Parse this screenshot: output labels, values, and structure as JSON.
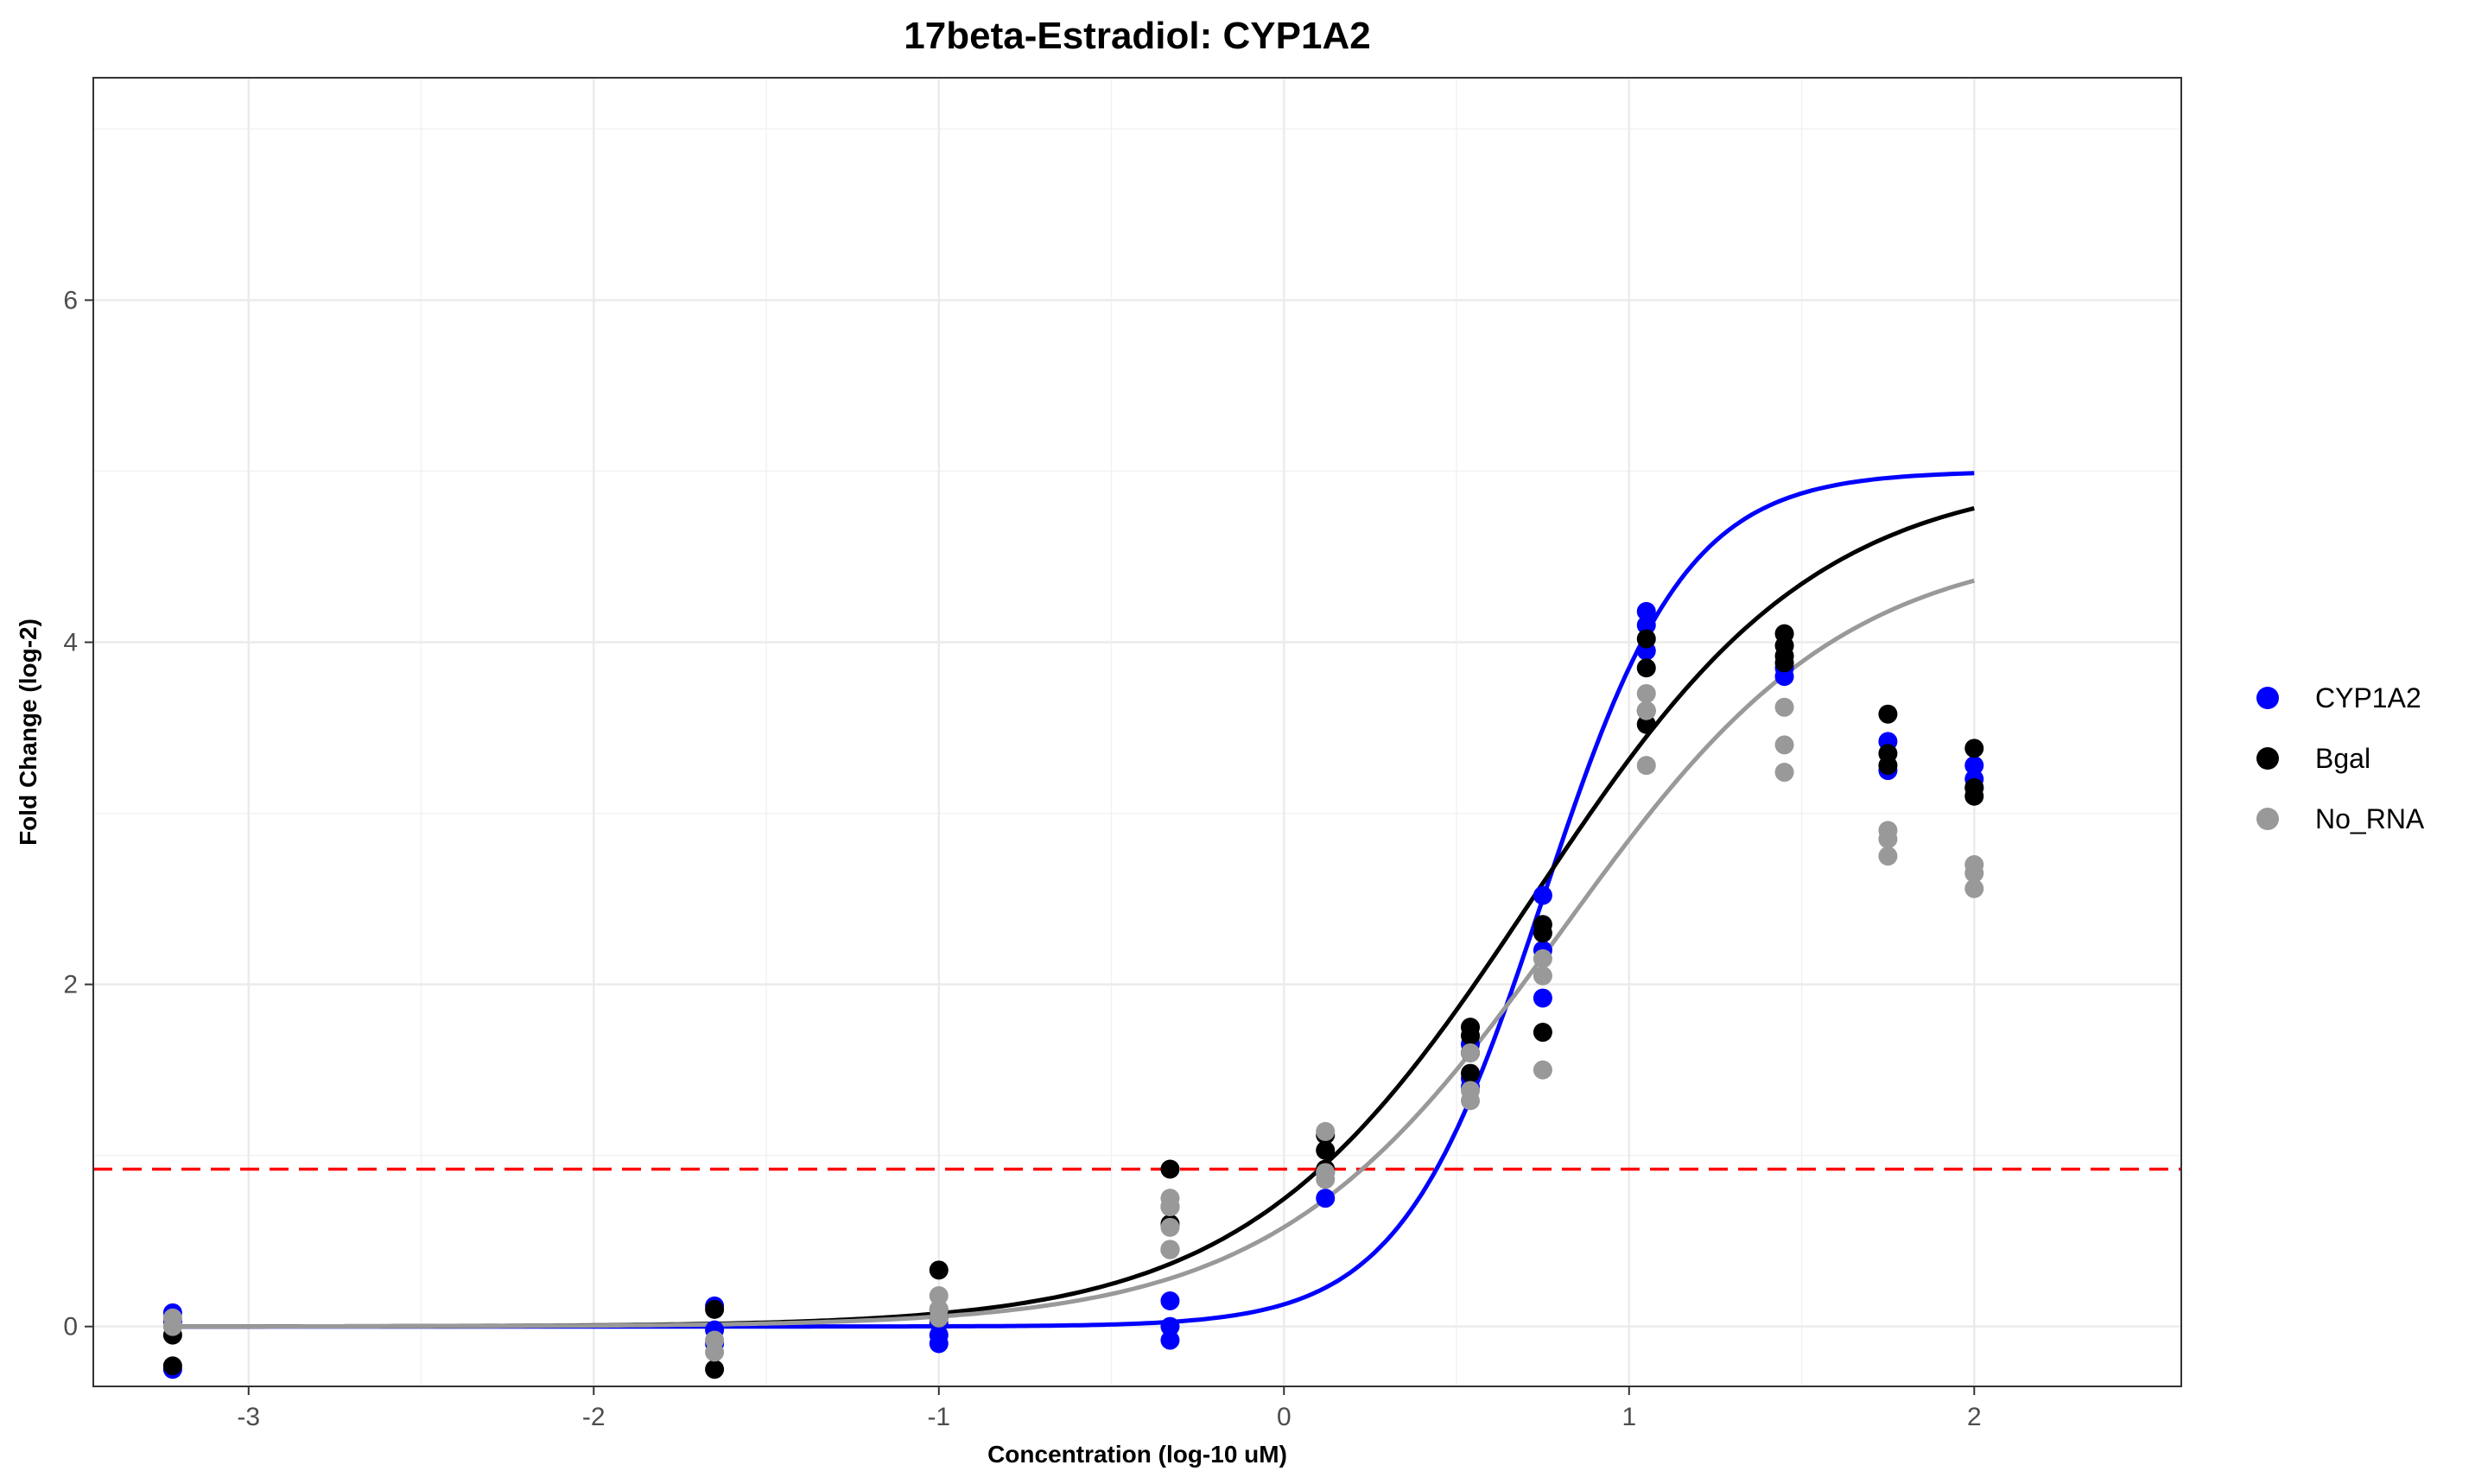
{
  "chart_data": {
    "type": "scatter",
    "title": "17beta-Estradiol: CYP1A2",
    "xlabel": "Concentration (log-10 uM)",
    "ylabel": "Fold Change (log-2)",
    "xlim": [
      -3.45,
      2.6
    ],
    "ylim": [
      -0.35,
      7.3
    ],
    "x_ticks": [
      -3,
      -2,
      -1,
      0,
      1,
      2
    ],
    "y_ticks": [
      0,
      2,
      4,
      6
    ],
    "grid": true,
    "legend_position": "right",
    "threshold_line": {
      "y": 0.92,
      "color": "#ff0000",
      "style": "dashed"
    },
    "series": [
      {
        "name": "CYP1A2",
        "color": "#0000ff",
        "points": [
          [
            -3.22,
            0.08
          ],
          [
            -3.22,
            0.03
          ],
          [
            -3.22,
            -0.25
          ],
          [
            -1.65,
            0.12
          ],
          [
            -1.65,
            -0.02
          ],
          [
            -1.65,
            -0.1
          ],
          [
            -1.0,
            -0.05
          ],
          [
            -1.0,
            -0.1
          ],
          [
            -1.0,
            0.02
          ],
          [
            -0.33,
            0.15
          ],
          [
            -0.33,
            0.0
          ],
          [
            -0.33,
            -0.08
          ],
          [
            0.12,
            0.9
          ],
          [
            0.12,
            0.75
          ],
          [
            0.54,
            1.65
          ],
          [
            0.54,
            1.45
          ],
          [
            0.54,
            1.4
          ],
          [
            0.75,
            2.52
          ],
          [
            0.75,
            2.2
          ],
          [
            0.75,
            1.92
          ],
          [
            1.05,
            4.18
          ],
          [
            1.05,
            4.1
          ],
          [
            1.05,
            3.95
          ],
          [
            1.45,
            3.85
          ],
          [
            1.45,
            3.8
          ],
          [
            1.75,
            3.42
          ],
          [
            1.75,
            3.25
          ],
          [
            2.0,
            3.28
          ],
          [
            2.0,
            3.2
          ],
          [
            2.0,
            3.15
          ]
        ],
        "fit": {
          "bottom": 0.0,
          "top": 5.0,
          "ec50_log": 0.75,
          "hill": 2.1
        }
      },
      {
        "name": "Bgal",
        "color": "#000000",
        "points": [
          [
            -3.22,
            -0.05
          ],
          [
            -3.22,
            -0.23
          ],
          [
            -1.65,
            0.1
          ],
          [
            -1.65,
            -0.25
          ],
          [
            -1.0,
            0.33
          ],
          [
            -1.0,
            0.1
          ],
          [
            -1.0,
            0.05
          ],
          [
            -0.33,
            0.92
          ],
          [
            -0.33,
            0.7
          ],
          [
            -0.33,
            0.6
          ],
          [
            -0.33,
            0.45
          ],
          [
            0.12,
            1.12
          ],
          [
            0.12,
            1.03
          ],
          [
            0.12,
            0.92
          ],
          [
            0.54,
            1.75
          ],
          [
            0.54,
            1.7
          ],
          [
            0.54,
            1.6
          ],
          [
            0.54,
            1.48
          ],
          [
            0.75,
            2.35
          ],
          [
            0.75,
            2.3
          ],
          [
            0.75,
            1.72
          ],
          [
            1.05,
            4.02
          ],
          [
            1.05,
            3.85
          ],
          [
            1.05,
            3.6
          ],
          [
            1.05,
            3.52
          ],
          [
            1.45,
            4.05
          ],
          [
            1.45,
            3.98
          ],
          [
            1.45,
            3.92
          ],
          [
            1.45,
            3.88
          ],
          [
            1.75,
            3.58
          ],
          [
            1.75,
            3.35
          ],
          [
            1.75,
            3.28
          ],
          [
            2.0,
            3.38
          ],
          [
            2.0,
            3.15
          ],
          [
            2.0,
            3.1
          ]
        ],
        "fit": {
          "bottom": 0.0,
          "top": 5.0,
          "ec50_log": 0.72,
          "hill": 1.05
        }
      },
      {
        "name": "No_RNA",
        "color": "#999999",
        "points": [
          [
            -3.22,
            0.05
          ],
          [
            -3.22,
            0.0
          ],
          [
            -1.65,
            -0.08
          ],
          [
            -1.65,
            -0.15
          ],
          [
            -1.0,
            0.18
          ],
          [
            -1.0,
            0.1
          ],
          [
            -1.0,
            0.05
          ],
          [
            -0.33,
            0.75
          ],
          [
            -0.33,
            0.7
          ],
          [
            -0.33,
            0.58
          ],
          [
            -0.33,
            0.45
          ],
          [
            0.12,
            1.14
          ],
          [
            0.12,
            0.9
          ],
          [
            0.12,
            0.86
          ],
          [
            0.54,
            1.6
          ],
          [
            0.54,
            1.38
          ],
          [
            0.54,
            1.32
          ],
          [
            0.75,
            2.15
          ],
          [
            0.75,
            2.05
          ],
          [
            0.75,
            1.5
          ],
          [
            1.05,
            3.7
          ],
          [
            1.05,
            3.6
          ],
          [
            1.05,
            3.28
          ],
          [
            1.45,
            3.62
          ],
          [
            1.45,
            3.4
          ],
          [
            1.45,
            3.24
          ],
          [
            1.75,
            2.9
          ],
          [
            1.75,
            2.85
          ],
          [
            1.75,
            2.75
          ],
          [
            2.0,
            2.7
          ],
          [
            2.0,
            2.65
          ],
          [
            2.0,
            2.56
          ]
        ],
        "fit": {
          "bottom": 0.0,
          "top": 4.6,
          "ec50_log": 0.8,
          "hill": 1.05
        }
      }
    ]
  }
}
